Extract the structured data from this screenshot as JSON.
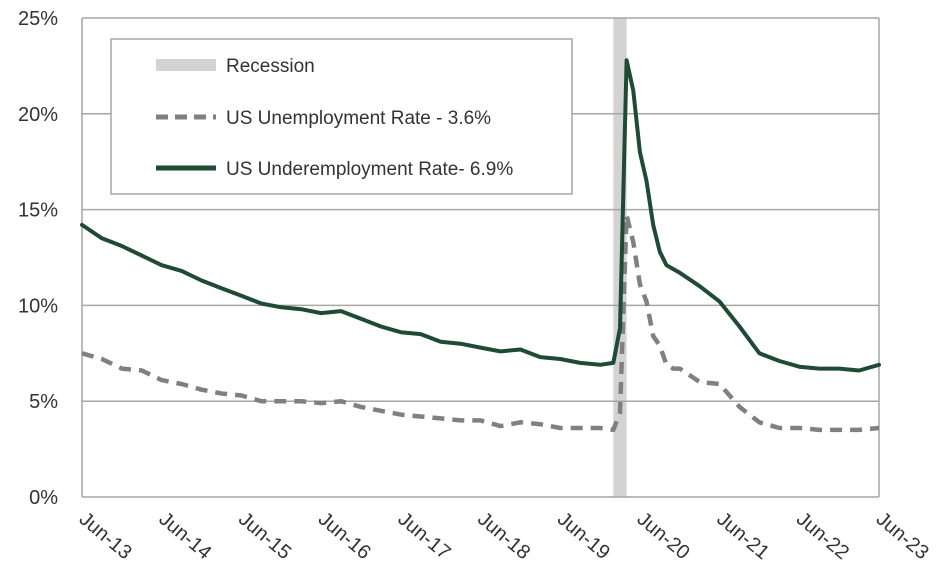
{
  "chart_data": {
    "type": "line",
    "title": "",
    "xlabel": "",
    "ylabel": "",
    "x_ticks": [
      "Jun-13",
      "Jun-14",
      "Jun-15",
      "Jun-16",
      "Jun-17",
      "Jun-18",
      "Jun-19",
      "Jun-20",
      "Jun-21",
      "Jun-22",
      "Jun-23"
    ],
    "y_ticks": [
      "0%",
      "5%",
      "10%",
      "15%",
      "20%",
      "25%"
    ],
    "xlim": [
      "2013-06",
      "2023-06"
    ],
    "ylim": [
      0,
      25
    ],
    "grid": "horizontal",
    "legend_position": "top-left",
    "recession": {
      "label": "Recession",
      "start": "2020-02",
      "end": "2020-04",
      "color": "#d3d3d3"
    },
    "series": [
      {
        "name": "US Unemployment Rate - 3.6%",
        "color": "#808080",
        "style": "dashed",
        "x": [
          "2013-06",
          "2013-09",
          "2013-12",
          "2014-03",
          "2014-06",
          "2014-09",
          "2014-12",
          "2015-03",
          "2015-06",
          "2015-09",
          "2015-12",
          "2016-03",
          "2016-06",
          "2016-09",
          "2016-12",
          "2017-03",
          "2017-06",
          "2017-09",
          "2017-12",
          "2018-03",
          "2018-06",
          "2018-09",
          "2018-12",
          "2019-03",
          "2019-06",
          "2019-09",
          "2019-12",
          "2020-02",
          "2020-03",
          "2020-04",
          "2020-05",
          "2020-06",
          "2020-07",
          "2020-08",
          "2020-09",
          "2020-10",
          "2020-11",
          "2020-12",
          "2021-03",
          "2021-06",
          "2021-09",
          "2021-12",
          "2022-03",
          "2022-06",
          "2022-09",
          "2022-12",
          "2023-03",
          "2023-06"
        ],
        "values": [
          7.5,
          7.2,
          6.7,
          6.6,
          6.1,
          5.9,
          5.6,
          5.4,
          5.3,
          5.0,
          5.0,
          5.0,
          4.9,
          5.0,
          4.7,
          4.5,
          4.3,
          4.2,
          4.1,
          4.0,
          4.0,
          3.7,
          3.9,
          3.8,
          3.6,
          3.6,
          3.6,
          3.5,
          4.4,
          14.7,
          13.3,
          11.1,
          10.2,
          8.4,
          7.9,
          6.9,
          6.7,
          6.7,
          6.0,
          5.9,
          4.7,
          3.9,
          3.6,
          3.6,
          3.5,
          3.5,
          3.5,
          3.6
        ]
      },
      {
        "name": "US Underemployment Rate- 6.9%",
        "color": "#1f4a33",
        "style": "solid",
        "x": [
          "2013-06",
          "2013-09",
          "2013-12",
          "2014-03",
          "2014-06",
          "2014-09",
          "2014-12",
          "2015-03",
          "2015-06",
          "2015-09",
          "2015-12",
          "2016-03",
          "2016-06",
          "2016-09",
          "2016-12",
          "2017-03",
          "2017-06",
          "2017-09",
          "2017-12",
          "2018-03",
          "2018-06",
          "2018-09",
          "2018-12",
          "2019-03",
          "2019-06",
          "2019-09",
          "2019-12",
          "2020-02",
          "2020-03",
          "2020-04",
          "2020-05",
          "2020-06",
          "2020-07",
          "2020-08",
          "2020-09",
          "2020-10",
          "2020-11",
          "2020-12",
          "2021-03",
          "2021-06",
          "2021-09",
          "2021-12",
          "2022-03",
          "2022-06",
          "2022-09",
          "2022-12",
          "2023-03",
          "2023-06"
        ],
        "values": [
          14.2,
          13.5,
          13.1,
          12.6,
          12.1,
          11.8,
          11.3,
          10.9,
          10.5,
          10.1,
          9.9,
          9.8,
          9.6,
          9.7,
          9.3,
          8.9,
          8.6,
          8.5,
          8.1,
          8.0,
          7.8,
          7.6,
          7.7,
          7.3,
          7.2,
          7.0,
          6.9,
          7.0,
          8.8,
          22.8,
          21.2,
          18.0,
          16.5,
          14.2,
          12.8,
          12.1,
          11.9,
          11.7,
          11.0,
          10.2,
          8.9,
          7.5,
          7.1,
          6.8,
          6.7,
          6.7,
          6.6,
          6.9
        ]
      }
    ]
  }
}
